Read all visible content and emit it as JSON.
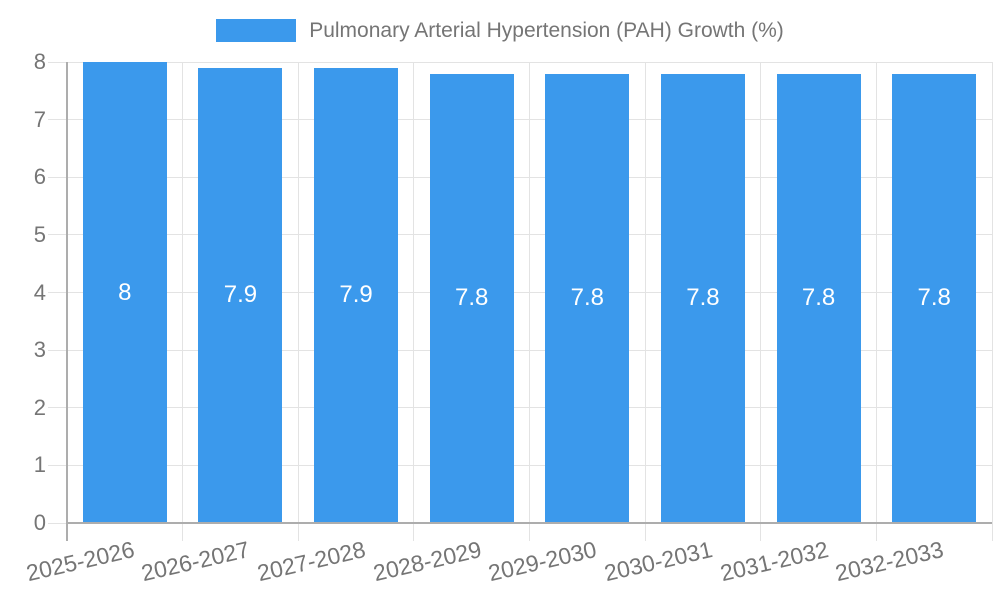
{
  "chart_data": {
    "type": "bar",
    "title": "Pulmonary Arterial Hypertension (PAH) Growth (%)",
    "categories": [
      "2025-2026",
      "2026-2027",
      "2027-2028",
      "2028-2029",
      "2029-2030",
      "2030-2031",
      "2031-2032",
      "2032-2033"
    ],
    "values": [
      8,
      7.9,
      7.9,
      7.8,
      7.8,
      7.8,
      7.8,
      7.8
    ],
    "value_labels": [
      "8",
      "7.9",
      "7.9",
      "7.8",
      "7.8",
      "7.8",
      "7.8",
      "7.8"
    ],
    "xlabel": "",
    "ylabel": "",
    "ylim": [
      0,
      8
    ],
    "y_ticks": [
      0,
      1,
      2,
      3,
      4,
      5,
      6,
      7,
      8
    ],
    "grid": true,
    "legend_position": "top",
    "bar_label_position": "center",
    "colors": {
      "bar": "#3B99EC",
      "bar_label": "#FFFFFF",
      "grid": "#E3E3E3",
      "axis": "#ADADAD",
      "text": "#757575",
      "background": "#FFFFFF"
    }
  }
}
